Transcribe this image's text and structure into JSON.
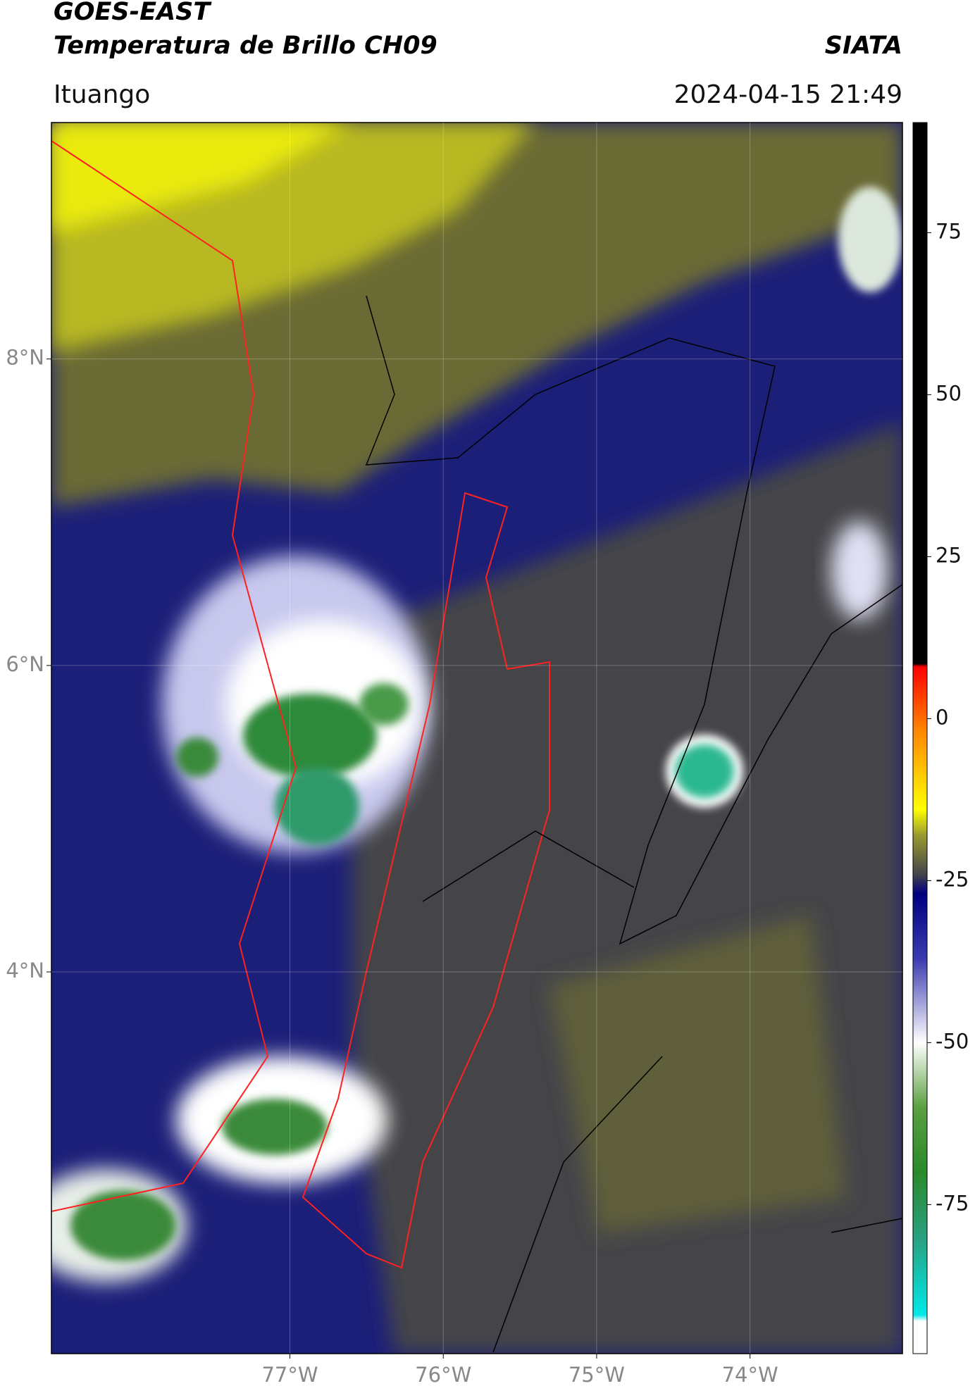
{
  "header": {
    "title_line1": "GOES-EAST",
    "title_line2": "Temperatura de Brillo CH09",
    "source": "SIATA",
    "location": "Ituango",
    "datetime": "2024-04-15 21:49"
  },
  "map": {
    "xlim": [
      -78.555,
      -73.006
    ],
    "ylim": [
      1.509,
      9.543
    ],
    "xticks": [
      {
        "value": -77,
        "label": "77°W"
      },
      {
        "value": -76,
        "label": "76°W"
      },
      {
        "value": -75,
        "label": "75°W"
      },
      {
        "value": -74,
        "label": "74°W"
      }
    ],
    "yticks": [
      {
        "value": 8,
        "label": "8°N"
      },
      {
        "value": 6,
        "label": "6°N"
      },
      {
        "value": 4,
        "label": "4°N"
      }
    ],
    "grid": true,
    "colorbar": {
      "lim": [
        -98,
        92
      ],
      "ticks": [
        75,
        50,
        25,
        0,
        -25,
        -50,
        -75
      ],
      "stops": [
        {
          "value": 92,
          "color": "#000000"
        },
        {
          "value": 8.5,
          "color": "#000000"
        },
        {
          "value": 8,
          "color": "#ff0000"
        },
        {
          "value": -2,
          "color": "#ff8800"
        },
        {
          "value": -14,
          "color": "#ffff00"
        },
        {
          "value": -18,
          "color": "#9a9a30"
        },
        {
          "value": -24,
          "color": "#45454a"
        },
        {
          "value": -27,
          "color": "#000080"
        },
        {
          "value": -37,
          "color": "#3a3ab0"
        },
        {
          "value": -50,
          "color": "#ffffff"
        },
        {
          "value": -60,
          "color": "#5aa040"
        },
        {
          "value": -70,
          "color": "#2a8a2a"
        },
        {
          "value": -80,
          "color": "#2aa080"
        },
        {
          "value": -92,
          "color": "#00e8e8"
        },
        {
          "value": -93,
          "color": "#ffffff"
        },
        {
          "value": -98,
          "color": "#ffffff"
        }
      ]
    }
  }
}
